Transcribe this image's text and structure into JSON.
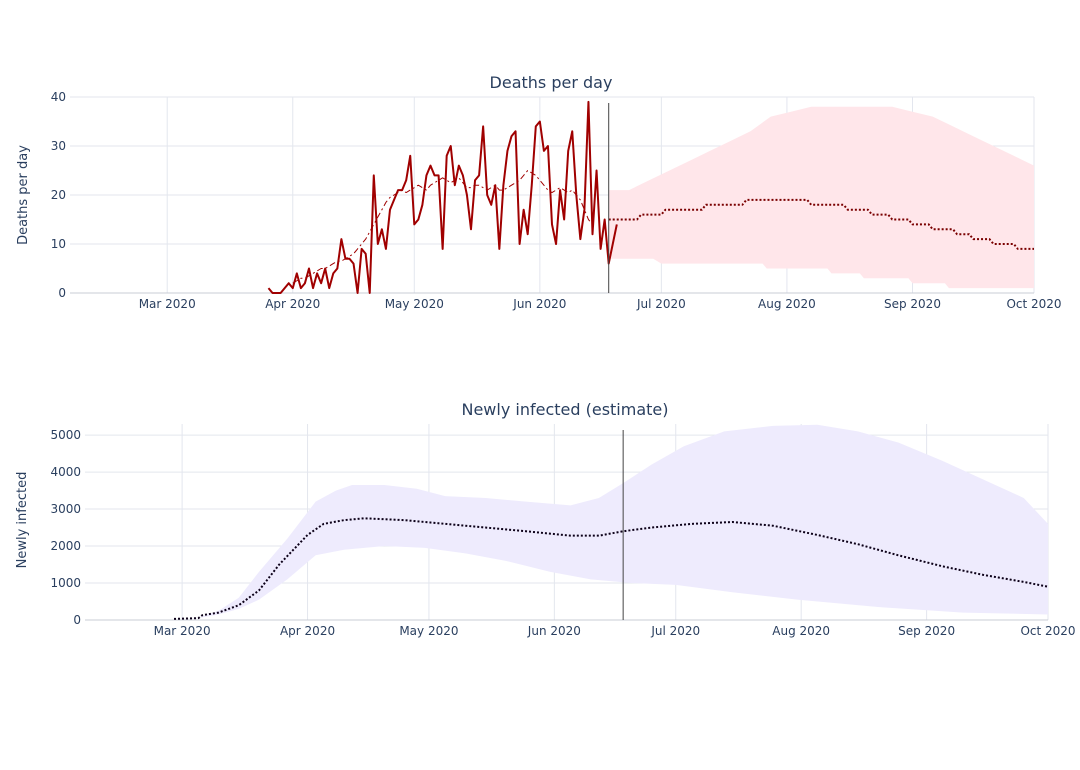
{
  "colors": {
    "deaths_line": "#a00000",
    "deaths_band": "#ffe6ea",
    "infected_band": "#eeebfd",
    "infected_line": "#0c0018",
    "grid": "#e3e6ee",
    "text": "#2a3f5f",
    "divider": "#444444"
  },
  "chart_data": [
    {
      "type": "line",
      "title": "Deaths per day",
      "ylabel": "Deaths per day",
      "xlabel": "",
      "x_range": [
        "2020-02-06",
        "2020-10-01"
      ],
      "ylim": [
        0,
        40
      ],
      "y_ticks": [
        0,
        10,
        20,
        30,
        40
      ],
      "x_ticks": [
        {
          "date": "2020-03-01",
          "label": "Mar 2020"
        },
        {
          "date": "2020-04-01",
          "label": "Apr 2020"
        },
        {
          "date": "2020-05-01",
          "label": "May 2020"
        },
        {
          "date": "2020-06-01",
          "label": "Jun 2020"
        },
        {
          "date": "2020-07-01",
          "label": "Jul 2020"
        },
        {
          "date": "2020-08-01",
          "label": "Aug 2020"
        },
        {
          "date": "2020-09-01",
          "label": "Sep 2020"
        },
        {
          "date": "2020-10-01",
          "label": "Oct 2020"
        }
      ],
      "divider_date": "2020-06-18",
      "grid": true,
      "series": [
        {
          "role": "observed",
          "style": "solid",
          "x_start": "2020-03-26",
          "values": [
            1,
            0,
            0,
            0,
            1,
            2,
            1,
            4,
            1,
            2,
            5,
            1,
            4,
            2,
            5,
            1,
            4,
            5,
            11,
            7,
            7,
            6,
            0,
            9,
            8,
            0,
            24,
            10,
            13,
            9,
            17,
            19,
            21,
            21,
            23,
            28,
            14,
            15,
            18,
            24,
            26,
            24,
            24,
            9,
            28,
            30,
            22,
            26,
            24,
            20,
            13,
            23,
            24,
            34,
            20,
            18,
            22,
            9,
            22,
            29,
            32,
            33,
            10,
            17,
            12,
            22,
            34,
            35,
            29,
            30,
            14,
            10,
            21,
            15,
            29,
            33,
            20,
            11,
            17,
            39,
            12,
            25,
            9,
            15,
            6,
            10,
            14
          ]
        },
        {
          "role": "7-day average",
          "style": "dash-dot",
          "x_start": "2020-04-01",
          "values": [
            2,
            2.5,
            3,
            3,
            3.5,
            4,
            4.5,
            5,
            5,
            5.5,
            6,
            6.5,
            6.5,
            7,
            7.5,
            8,
            9,
            10,
            11,
            12.5,
            14,
            15.5,
            17,
            18.5,
            19.5,
            20,
            20.5,
            21,
            20.5,
            21,
            21.5,
            22,
            21.5,
            21,
            22,
            22.5,
            23,
            23.5,
            23,
            22.5,
            23,
            23.5,
            22.5,
            21.5,
            21.5,
            22,
            22,
            21.5,
            21,
            21.5,
            22,
            21,
            21,
            21.5,
            22,
            22.5,
            23,
            24,
            25,
            24.5,
            24,
            23,
            22,
            21,
            20.5,
            21,
            21.5,
            21,
            20.5,
            21,
            20,
            19,
            17,
            15,
            14
          ]
        },
        {
          "role": "projection",
          "style": "dotted",
          "points": [
            [
              "2020-06-18",
              15
            ],
            [
              "2020-06-25",
              15
            ],
            [
              "2020-06-26",
              16
            ],
            [
              "2020-07-01",
              16
            ],
            [
              "2020-07-02",
              17
            ],
            [
              "2020-07-11",
              17
            ],
            [
              "2020-07-12",
              18
            ],
            [
              "2020-07-21",
              18
            ],
            [
              "2020-07-22",
              19
            ],
            [
              "2020-08-06",
              19
            ],
            [
              "2020-08-07",
              18
            ],
            [
              "2020-08-15",
              18
            ],
            [
              "2020-08-16",
              17
            ],
            [
              "2020-08-21",
              17
            ],
            [
              "2020-08-22",
              16
            ],
            [
              "2020-08-26",
              16
            ],
            [
              "2020-08-27",
              15
            ],
            [
              "2020-08-31",
              15
            ],
            [
              "2020-09-01",
              14
            ],
            [
              "2020-09-05",
              14
            ],
            [
              "2020-09-06",
              13
            ],
            [
              "2020-09-11",
              13
            ],
            [
              "2020-09-12",
              12
            ],
            [
              "2020-09-15",
              12
            ],
            [
              "2020-09-16",
              11
            ],
            [
              "2020-09-20",
              11
            ],
            [
              "2020-09-21",
              10
            ],
            [
              "2020-09-26",
              10
            ],
            [
              "2020-09-27",
              9
            ],
            [
              "2020-10-01",
              9
            ]
          ]
        }
      ],
      "band": {
        "upper": [
          [
            "2020-06-18",
            21
          ],
          [
            "2020-06-23",
            21
          ],
          [
            "2020-06-28",
            23
          ],
          [
            "2020-07-03",
            25
          ],
          [
            "2020-07-08",
            27
          ],
          [
            "2020-07-13",
            29
          ],
          [
            "2020-07-18",
            31
          ],
          [
            "2020-07-23",
            33
          ],
          [
            "2020-07-28",
            36
          ],
          [
            "2020-08-02",
            37
          ],
          [
            "2020-08-07",
            38
          ],
          [
            "2020-08-12",
            38
          ],
          [
            "2020-08-17",
            38
          ],
          [
            "2020-08-22",
            38
          ],
          [
            "2020-08-27",
            38
          ],
          [
            "2020-09-01",
            37
          ],
          [
            "2020-09-06",
            36
          ],
          [
            "2020-09-11",
            34
          ],
          [
            "2020-09-16",
            32
          ],
          [
            "2020-09-21",
            30
          ],
          [
            "2020-09-26",
            28
          ],
          [
            "2020-10-01",
            26
          ]
        ],
        "lower": [
          [
            "2020-06-18",
            7
          ],
          [
            "2020-06-29",
            7
          ],
          [
            "2020-07-01",
            6
          ],
          [
            "2020-07-26",
            6
          ],
          [
            "2020-07-27",
            5
          ],
          [
            "2020-08-11",
            5
          ],
          [
            "2020-08-12",
            4
          ],
          [
            "2020-08-19",
            4
          ],
          [
            "2020-08-20",
            3
          ],
          [
            "2020-08-31",
            3
          ],
          [
            "2020-09-01",
            2
          ],
          [
            "2020-09-09",
            2
          ],
          [
            "2020-09-10",
            1
          ],
          [
            "2020-10-01",
            1
          ]
        ]
      }
    },
    {
      "type": "line",
      "title": "Newly infected (estimate)",
      "ylabel": "Newly infected",
      "xlabel": "",
      "x_range": [
        "2020-02-06",
        "2020-10-01"
      ],
      "ylim": [
        0,
        5300
      ],
      "y_ticks": [
        0,
        1000,
        2000,
        3000,
        4000,
        5000
      ],
      "x_ticks": [
        {
          "date": "2020-03-01",
          "label": "Mar 2020"
        },
        {
          "date": "2020-04-01",
          "label": "Apr 2020"
        },
        {
          "date": "2020-05-01",
          "label": "May 2020"
        },
        {
          "date": "2020-06-01",
          "label": "Jun 2020"
        },
        {
          "date": "2020-07-01",
          "label": "Jul 2020"
        },
        {
          "date": "2020-08-01",
          "label": "Aug 2020"
        },
        {
          "date": "2020-09-01",
          "label": "Sep 2020"
        },
        {
          "date": "2020-10-01",
          "label": "Oct 2020"
        }
      ],
      "divider_date": "2020-06-18",
      "grid": true,
      "series": [
        {
          "role": "estimate",
          "style": "dotted",
          "points": [
            [
              "2020-02-28",
              30
            ],
            [
              "2020-03-05",
              50
            ],
            [
              "2020-03-06",
              130
            ],
            [
              "2020-03-10",
              200
            ],
            [
              "2020-03-15",
              400
            ],
            [
              "2020-03-20",
              800
            ],
            [
              "2020-03-25",
              1500
            ],
            [
              "2020-04-01",
              2300
            ],
            [
              "2020-04-05",
              2600
            ],
            [
              "2020-04-10",
              2700
            ],
            [
              "2020-04-15",
              2750
            ],
            [
              "2020-04-25",
              2700
            ],
            [
              "2020-05-05",
              2600
            ],
            [
              "2020-05-15",
              2500
            ],
            [
              "2020-05-25",
              2400
            ],
            [
              "2020-06-05",
              2280
            ],
            [
              "2020-06-12",
              2280
            ],
            [
              "2020-06-18",
              2400
            ],
            [
              "2020-06-25",
              2500
            ],
            [
              "2020-07-05",
              2600
            ],
            [
              "2020-07-15",
              2650
            ],
            [
              "2020-07-25",
              2550
            ],
            [
              "2020-08-05",
              2300
            ],
            [
              "2020-08-15",
              2050
            ],
            [
              "2020-08-25",
              1750
            ],
            [
              "2020-09-05",
              1450
            ],
            [
              "2020-09-15",
              1220
            ],
            [
              "2020-09-25",
              1030
            ],
            [
              "2020-10-01",
              900
            ]
          ]
        }
      ],
      "band": {
        "upper": [
          [
            "2020-02-28",
            30
          ],
          [
            "2020-03-05",
            60
          ],
          [
            "2020-03-10",
            250
          ],
          [
            "2020-03-15",
            600
          ],
          [
            "2020-03-20",
            1300
          ],
          [
            "2020-03-27",
            2200
          ],
          [
            "2020-04-03",
            3200
          ],
          [
            "2020-04-08",
            3500
          ],
          [
            "2020-04-12",
            3650
          ],
          [
            "2020-04-20",
            3650
          ],
          [
            "2020-04-28",
            3550
          ],
          [
            "2020-05-05",
            3350
          ],
          [
            "2020-05-15",
            3300
          ],
          [
            "2020-05-25",
            3200
          ],
          [
            "2020-06-05",
            3100
          ],
          [
            "2020-06-12",
            3300
          ],
          [
            "2020-06-18",
            3700
          ],
          [
            "2020-06-25",
            4200
          ],
          [
            "2020-07-03",
            4700
          ],
          [
            "2020-07-13",
            5100
          ],
          [
            "2020-07-25",
            5250
          ],
          [
            "2020-08-05",
            5280
          ],
          [
            "2020-08-15",
            5100
          ],
          [
            "2020-08-25",
            4800
          ],
          [
            "2020-09-05",
            4300
          ],
          [
            "2020-09-15",
            3800
          ],
          [
            "2020-09-25",
            3300
          ],
          [
            "2020-10-01",
            2600
          ]
        ],
        "lower": [
          [
            "2020-02-28",
            30
          ],
          [
            "2020-03-05",
            50
          ],
          [
            "2020-03-10",
            150
          ],
          [
            "2020-03-15",
            300
          ],
          [
            "2020-03-20",
            550
          ],
          [
            "2020-03-27",
            1100
          ],
          [
            "2020-04-03",
            1750
          ],
          [
            "2020-04-10",
            1900
          ],
          [
            "2020-04-20",
            2000
          ],
          [
            "2020-04-30",
            1950
          ],
          [
            "2020-05-10",
            1800
          ],
          [
            "2020-05-20",
            1600
          ],
          [
            "2020-05-31",
            1300
          ],
          [
            "2020-06-10",
            1100
          ],
          [
            "2020-06-20",
            1000
          ],
          [
            "2020-07-01",
            950
          ],
          [
            "2020-07-15",
            750
          ],
          [
            "2020-07-31",
            550
          ],
          [
            "2020-08-20",
            350
          ],
          [
            "2020-09-10",
            200
          ],
          [
            "2020-10-01",
            150
          ]
        ]
      }
    }
  ]
}
